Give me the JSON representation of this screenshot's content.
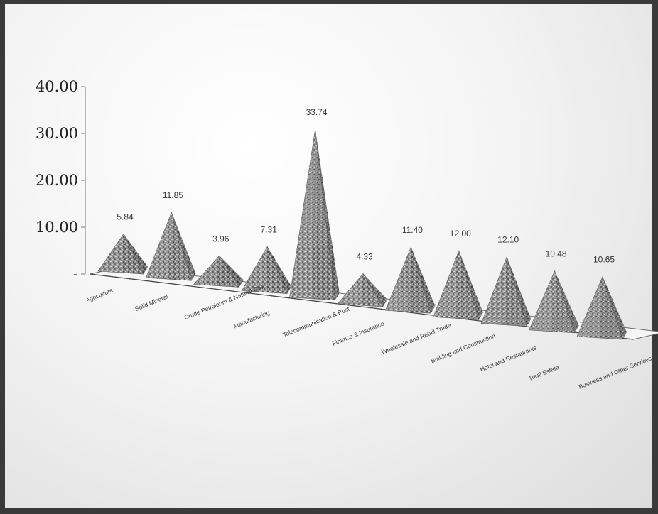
{
  "chart_data": {
    "type": "bar",
    "style": "3d-pyramid",
    "title": "",
    "xlabel": "",
    "ylabel": "",
    "ylim": [
      0,
      40
    ],
    "yticks": [
      "-",
      "10.00",
      "20.00",
      "30.00",
      "40.00"
    ],
    "categories": [
      "Agriculture",
      "Solid Mineral",
      "Crude Petroleum & Natural Gas",
      "Manufacturing",
      "Telecommunication & Post",
      "Finance & Insurance",
      "Wholesale and Retail Trade",
      "Building and Construction",
      "Hotel and Restaurants",
      "Real Estate",
      "Business and Other Services"
    ],
    "values": [
      5.84,
      11.85,
      3.96,
      7.31,
      33.74,
      4.33,
      11.4,
      12.0,
      12.1,
      10.48,
      10.65
    ],
    "data_labels": [
      "5.84",
      "11.85",
      "3.96",
      "7.31",
      "33.74",
      "4.33",
      "11.40",
      "12.00",
      "12.10",
      "10.48",
      "10.65"
    ],
    "grid": false,
    "legend": "none"
  }
}
